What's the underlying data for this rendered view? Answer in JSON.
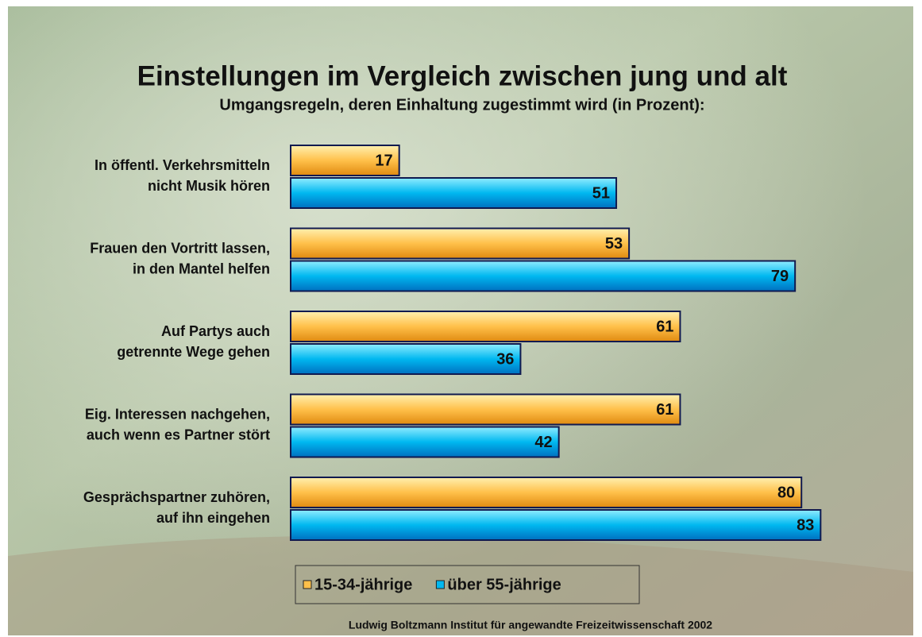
{
  "chart_data": {
    "type": "hbar",
    "title": "Einstellungen im Vergleich zwischen jung und alt",
    "subtitle": "Umgangsregeln, deren Einhaltung zugestimmt wird (in Prozent):",
    "categories": [
      "In öffentl. Verkehrsmitteln\nnicht Musik hören",
      "Frauen den Vortritt lassen,\nin den Mantel helfen",
      "Auf Partys auch\ngetrennte Wege gehen",
      "Eig. Interessen nachgehen,\nauch wenn es Partner stört",
      "Gesprächspartner zuhören,\nauf ihn eingehen"
    ],
    "series": [
      {
        "name": "15-34-jährige",
        "color": "#ffc04a",
        "values": [
          17,
          53,
          61,
          61,
          80
        ]
      },
      {
        "name": "über 55-jährige",
        "color": "#00b8f0",
        "values": [
          51,
          79,
          36,
          42,
          83
        ]
      }
    ],
    "source": "Ludwig Boltzmann Institut für angewandte Freizeitwissenschaft 2002"
  }
}
